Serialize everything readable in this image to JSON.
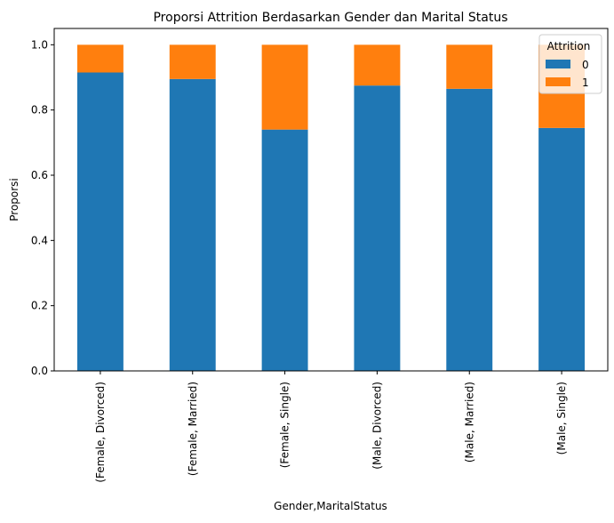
{
  "chart_data": {
    "type": "bar",
    "stacked": true,
    "title": "Proporsi Attrition Berdasarkan Gender dan Marital Status",
    "xlabel": "Gender,MaritalStatus",
    "ylabel": "Proporsi",
    "ylim": [
      0,
      1.05
    ],
    "yticks": [
      0.0,
      0.2,
      0.4,
      0.6,
      0.8,
      1.0
    ],
    "ytick_labels": [
      "0.0",
      "0.2",
      "0.4",
      "0.6",
      "0.8",
      "1.0"
    ],
    "categories": [
      "(Female, Divorced)",
      "(Female, Married)",
      "(Female, Single)",
      "(Male, Divorced)",
      "(Male, Married)",
      "(Male, Single)"
    ],
    "series": [
      {
        "name": "0",
        "color": "#1f77b4",
        "values": [
          0.915,
          0.895,
          0.74,
          0.875,
          0.865,
          0.745
        ]
      },
      {
        "name": "1",
        "color": "#ff7f0e",
        "values": [
          0.085,
          0.105,
          0.26,
          0.125,
          0.135,
          0.255
        ]
      }
    ],
    "legend": {
      "title": "Attrition",
      "placement": "top-right"
    },
    "grid": false
  }
}
